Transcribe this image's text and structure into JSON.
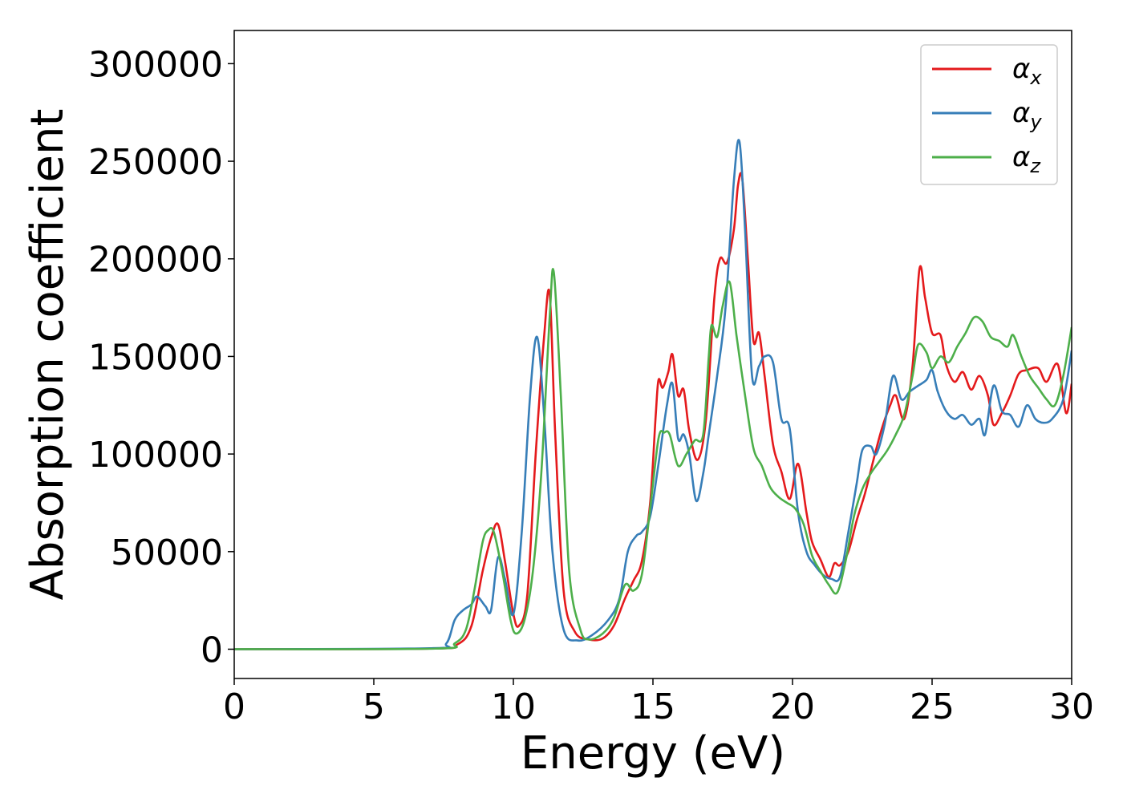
{
  "chart_data": {
    "type": "line",
    "title": "",
    "xlabel": "Energy (eV)",
    "ylabel": "Absorption coefficient",
    "xlim": [
      0,
      30
    ],
    "ylim": [
      -15000,
      317000
    ],
    "xticks": [
      0,
      5,
      10,
      15,
      20,
      25,
      30
    ],
    "yticks": [
      0,
      50000,
      100000,
      150000,
      200000,
      250000,
      300000
    ],
    "grid": false,
    "legend_position": "top-right",
    "series": [
      {
        "name": "αx",
        "label_base": "α",
        "label_sub": "x",
        "color": "#e41a1c",
        "points": [
          [
            0,
            0
          ],
          [
            7,
            300
          ],
          [
            8,
            2500
          ],
          [
            8.5,
            12000
          ],
          [
            8.9,
            40000
          ],
          [
            9.2,
            57000
          ],
          [
            9.45,
            64000
          ],
          [
            9.7,
            45000
          ],
          [
            10,
            18000
          ],
          [
            10.2,
            12000
          ],
          [
            10.5,
            28000
          ],
          [
            10.8,
            100000
          ],
          [
            11.1,
            160000
          ],
          [
            11.3,
            182000
          ],
          [
            11.5,
            110000
          ],
          [
            11.8,
            30000
          ],
          [
            12.2,
            9000
          ],
          [
            12.7,
            5000
          ],
          [
            13.2,
            5500
          ],
          [
            13.6,
            12000
          ],
          [
            14,
            26000
          ],
          [
            14.3,
            35000
          ],
          [
            14.6,
            45000
          ],
          [
            14.9,
            75000
          ],
          [
            15.1,
            120000
          ],
          [
            15.2,
            138000
          ],
          [
            15.35,
            134000
          ],
          [
            15.55,
            142000
          ],
          [
            15.7,
            151000
          ],
          [
            15.9,
            130000
          ],
          [
            16.1,
            133000
          ],
          [
            16.3,
            112000
          ],
          [
            16.6,
            97000
          ],
          [
            16.9,
            118000
          ],
          [
            17.2,
            180000
          ],
          [
            17.4,
            200000
          ],
          [
            17.65,
            198000
          ],
          [
            17.9,
            215000
          ],
          [
            18.05,
            238000
          ],
          [
            18.2,
            241000
          ],
          [
            18.4,
            200000
          ],
          [
            18.6,
            158000
          ],
          [
            18.8,
            162000
          ],
          [
            19,
            140000
          ],
          [
            19.3,
            105000
          ],
          [
            19.6,
            91000
          ],
          [
            19.9,
            77000
          ],
          [
            20.2,
            95000
          ],
          [
            20.5,
            70000
          ],
          [
            20.7,
            55000
          ],
          [
            21,
            46000
          ],
          [
            21.3,
            37000
          ],
          [
            21.5,
            44000
          ],
          [
            21.7,
            43000
          ],
          [
            22,
            50000
          ],
          [
            22.3,
            66000
          ],
          [
            22.6,
            80000
          ],
          [
            22.9,
            97000
          ],
          [
            23.2,
            113000
          ],
          [
            23.5,
            125000
          ],
          [
            23.7,
            130000
          ],
          [
            24,
            118000
          ],
          [
            24.3,
            145000
          ],
          [
            24.55,
            195000
          ],
          [
            24.75,
            180000
          ],
          [
            25,
            162000
          ],
          [
            25.3,
            161000
          ],
          [
            25.5,
            146000
          ],
          [
            25.8,
            137000
          ],
          [
            26.1,
            142000
          ],
          [
            26.4,
            133000
          ],
          [
            26.7,
            140000
          ],
          [
            27,
            130000
          ],
          [
            27.2,
            115000
          ],
          [
            27.5,
            121000
          ],
          [
            27.8,
            130000
          ],
          [
            28.1,
            141000
          ],
          [
            28.4,
            143000
          ],
          [
            28.8,
            144000
          ],
          [
            29.1,
            137000
          ],
          [
            29.5,
            146000
          ],
          [
            29.8,
            121000
          ],
          [
            30,
            136000
          ]
        ]
      },
      {
        "name": "αy",
        "label_base": "α",
        "label_sub": "y",
        "color": "#377eb8",
        "points": [
          [
            0,
            0
          ],
          [
            7,
            500
          ],
          [
            7.6,
            3000
          ],
          [
            7.9,
            15000
          ],
          [
            8.2,
            20000
          ],
          [
            8.5,
            23000
          ],
          [
            8.7,
            27000
          ],
          [
            9,
            22000
          ],
          [
            9.2,
            20000
          ],
          [
            9.45,
            47000
          ],
          [
            9.7,
            36000
          ],
          [
            10,
            18000
          ],
          [
            10.3,
            60000
          ],
          [
            10.6,
            130000
          ],
          [
            10.85,
            160000
          ],
          [
            11.1,
            120000
          ],
          [
            11.4,
            50000
          ],
          [
            11.8,
            10000
          ],
          [
            12.3,
            4500
          ],
          [
            12.8,
            7000
          ],
          [
            13.4,
            15000
          ],
          [
            13.8,
            26000
          ],
          [
            14.1,
            50000
          ],
          [
            14.4,
            58000
          ],
          [
            14.6,
            60000
          ],
          [
            14.9,
            68000
          ],
          [
            15.2,
            95000
          ],
          [
            15.5,
            125000
          ],
          [
            15.7,
            136000
          ],
          [
            15.9,
            108000
          ],
          [
            16.1,
            110000
          ],
          [
            16.3,
            100000
          ],
          [
            16.55,
            76000
          ],
          [
            16.8,
            90000
          ],
          [
            17,
            110000
          ],
          [
            17.3,
            140000
          ],
          [
            17.6,
            175000
          ],
          [
            17.9,
            240000
          ],
          [
            18.1,
            260000
          ],
          [
            18.3,
            215000
          ],
          [
            18.55,
            140000
          ],
          [
            18.8,
            145000
          ],
          [
            19,
            150000
          ],
          [
            19.3,
            147000
          ],
          [
            19.6,
            118000
          ],
          [
            19.9,
            113000
          ],
          [
            20.2,
            70000
          ],
          [
            20.5,
            50000
          ],
          [
            20.8,
            43000
          ],
          [
            21.1,
            38000
          ],
          [
            21.4,
            36000
          ],
          [
            21.7,
            37000
          ],
          [
            22,
            60000
          ],
          [
            22.3,
            85000
          ],
          [
            22.5,
            102000
          ],
          [
            22.8,
            104000
          ],
          [
            23,
            100000
          ],
          [
            23.3,
            115000
          ],
          [
            23.6,
            140000
          ],
          [
            23.9,
            128000
          ],
          [
            24.2,
            132000
          ],
          [
            24.5,
            135000
          ],
          [
            24.8,
            138000
          ],
          [
            25,
            143000
          ],
          [
            25.2,
            132000
          ],
          [
            25.5,
            122000
          ],
          [
            25.8,
            118000
          ],
          [
            26.1,
            120000
          ],
          [
            26.4,
            115000
          ],
          [
            26.7,
            118000
          ],
          [
            26.9,
            110000
          ],
          [
            27.2,
            135000
          ],
          [
            27.5,
            122000
          ],
          [
            27.8,
            120000
          ],
          [
            28.1,
            114000
          ],
          [
            28.4,
            125000
          ],
          [
            28.7,
            118000
          ],
          [
            29,
            116000
          ],
          [
            29.3,
            118000
          ],
          [
            29.7,
            128000
          ],
          [
            30,
            153000
          ]
        ]
      },
      {
        "name": "αz",
        "label_base": "α",
        "label_sub": "z",
        "color": "#4daf4a",
        "points": [
          [
            0,
            0
          ],
          [
            7.2,
            300
          ],
          [
            7.9,
            3000
          ],
          [
            8.3,
            10000
          ],
          [
            8.6,
            30000
          ],
          [
            8.9,
            55000
          ],
          [
            9.1,
            61000
          ],
          [
            9.3,
            60000
          ],
          [
            9.6,
            40000
          ],
          [
            9.9,
            15000
          ],
          [
            10.1,
            8000
          ],
          [
            10.4,
            15000
          ],
          [
            10.7,
            40000
          ],
          [
            11,
            90000
          ],
          [
            11.3,
            170000
          ],
          [
            11.45,
            193000
          ],
          [
            11.7,
            130000
          ],
          [
            12,
            40000
          ],
          [
            12.4,
            10000
          ],
          [
            12.7,
            5000
          ],
          [
            13.2,
            8000
          ],
          [
            13.6,
            16000
          ],
          [
            14,
            33000
          ],
          [
            14.3,
            30000
          ],
          [
            14.6,
            38000
          ],
          [
            14.9,
            72000
          ],
          [
            15.2,
            108000
          ],
          [
            15.4,
            111000
          ],
          [
            15.6,
            110000
          ],
          [
            15.9,
            94000
          ],
          [
            16.2,
            100000
          ],
          [
            16.5,
            107000
          ],
          [
            16.8,
            110000
          ],
          [
            17,
            150000
          ],
          [
            17.1,
            166000
          ],
          [
            17.3,
            160000
          ],
          [
            17.5,
            176000
          ],
          [
            17.75,
            188000
          ],
          [
            18,
            160000
          ],
          [
            18.3,
            130000
          ],
          [
            18.6,
            103000
          ],
          [
            18.9,
            94000
          ],
          [
            19.2,
            83000
          ],
          [
            19.5,
            78000
          ],
          [
            19.8,
            75000
          ],
          [
            20.1,
            72000
          ],
          [
            20.4,
            64000
          ],
          [
            20.7,
            48000
          ],
          [
            21,
            40000
          ],
          [
            21.3,
            33000
          ],
          [
            21.6,
            29000
          ],
          [
            21.9,
            45000
          ],
          [
            22.2,
            68000
          ],
          [
            22.5,
            82000
          ],
          [
            22.8,
            90000
          ],
          [
            23.1,
            96000
          ],
          [
            23.4,
            102000
          ],
          [
            23.7,
            110000
          ],
          [
            24,
            120000
          ],
          [
            24.3,
            140000
          ],
          [
            24.5,
            156000
          ],
          [
            24.8,
            152000
          ],
          [
            25,
            144000
          ],
          [
            25.3,
            150000
          ],
          [
            25.6,
            147000
          ],
          [
            25.9,
            155000
          ],
          [
            26.2,
            162000
          ],
          [
            26.5,
            170000
          ],
          [
            26.8,
            168000
          ],
          [
            27.1,
            160000
          ],
          [
            27.4,
            158000
          ],
          [
            27.7,
            155000
          ],
          [
            27.9,
            161000
          ],
          [
            28.2,
            150000
          ],
          [
            28.5,
            140000
          ],
          [
            28.8,
            134000
          ],
          [
            29.1,
            128000
          ],
          [
            29.4,
            125000
          ],
          [
            29.7,
            140000
          ],
          [
            30,
            165000
          ]
        ]
      }
    ]
  }
}
